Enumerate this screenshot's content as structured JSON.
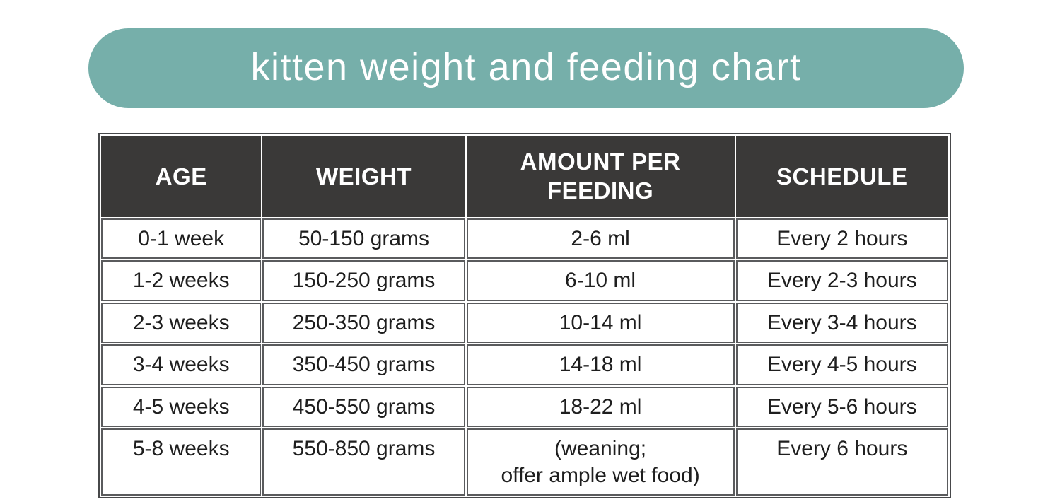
{
  "title_banner": {
    "label": "kitten weight and feeding chart",
    "background_color": "#76afaa",
    "text_color": "#ffffff"
  },
  "table_style": {
    "header_background": "#3a3938",
    "header_text_color": "#ffffff",
    "border_color": "#5a5b5d",
    "outer_border_color": "#47484a",
    "body_text_color": "#1e1e1e"
  },
  "chart_data": {
    "type": "table",
    "title": "kitten weight and feeding chart",
    "columns": [
      "AGE",
      "WEIGHT",
      "AMOUNT PER FEEDING",
      "SCHEDULE"
    ],
    "rows": [
      [
        "0-1 week",
        "50-150 grams",
        "2-6 ml",
        "Every 2 hours"
      ],
      [
        "1-2 weeks",
        "150-250 grams",
        "6-10 ml",
        "Every 2-3 hours"
      ],
      [
        "2-3 weeks",
        "250-350 grams",
        "10-14 ml",
        "Every 3-4 hours"
      ],
      [
        "3-4 weeks",
        "350-450 grams",
        "14-18 ml",
        "Every 4-5 hours"
      ],
      [
        "4-5 weeks",
        "450-550 grams",
        "18-22 ml",
        "Every 5-6 hours"
      ],
      [
        "5-8 weeks",
        "550-850 grams",
        "(weaning;\noffer ample wet food)",
        "Every 6 hours"
      ]
    ],
    "layout_hints": {
      "header_row": "dark background, white uppercase text",
      "grid": "separated cell borders with white gaps",
      "title_position": "rounded pill banner above table"
    }
  }
}
